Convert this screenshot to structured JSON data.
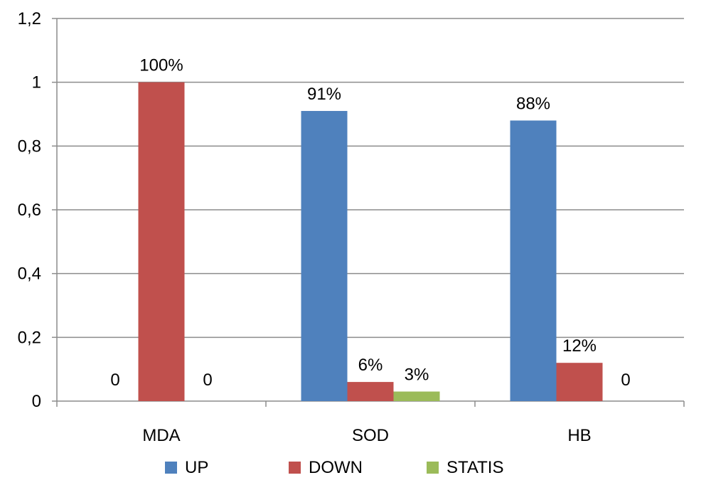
{
  "chart_data": {
    "type": "bar",
    "categories": [
      "MDA",
      "SOD",
      "HB"
    ],
    "series": [
      {
        "name": "UP",
        "color": "#4F81BD",
        "values": [
          0,
          0.91,
          0.88
        ],
        "labels": [
          "0",
          "91%",
          "88%"
        ]
      },
      {
        "name": "DOWN",
        "color": "#C0504D",
        "values": [
          1.0,
          0.06,
          0.12
        ],
        "labels": [
          "100%",
          "6%",
          "12%"
        ]
      },
      {
        "name": "STATIS",
        "color": "#9BBB59",
        "values": [
          0,
          0.03,
          0
        ],
        "labels": [
          "0",
          "3%",
          "0"
        ]
      }
    ],
    "ylim": [
      0,
      1.2
    ],
    "yticks": [
      "0",
      "0,2",
      "0,4",
      "0,6",
      "0,8",
      "1",
      "1,2"
    ],
    "ytick_values": [
      0,
      0.2,
      0.4,
      0.6,
      0.8,
      1.0,
      1.2
    ],
    "grid": true,
    "legend_position": "bottom",
    "title": "",
    "xlabel": "",
    "ylabel": ""
  }
}
